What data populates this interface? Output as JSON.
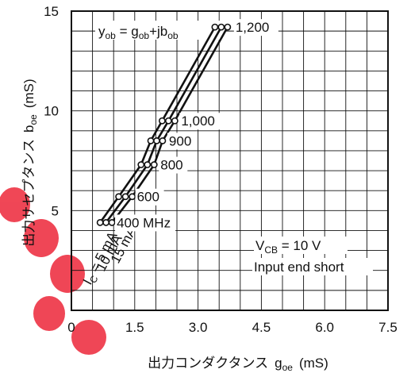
{
  "chart_data": {
    "type": "line",
    "xlabel": "出力コンダクタンス",
    "xlabel_symbol": "g",
    "xlabel_sub": "oe",
    "xlabel_unit": "(mS)",
    "ylabel": "出力サセプタンス",
    "ylabel_symbol": "b",
    "ylabel_sub": "oe",
    "ylabel_unit": "(mS)",
    "xlim": [
      0,
      7.5
    ],
    "ylim": [
      0,
      15
    ],
    "xticks": [
      "0",
      "1.5",
      "3.0",
      "4.5",
      "6.0",
      "7.5"
    ],
    "yticks": [
      "5",
      "10",
      "15"
    ],
    "grid": true,
    "frequency_labels": [
      "400 MHz",
      "600",
      "800",
      "900",
      "1,000",
      "1,200"
    ],
    "series": [
      {
        "name": "I_C = 5 mA",
        "frequency_mhz": [
          400,
          600,
          800,
          900,
          1000,
          1200
        ],
        "x": [
          0.68,
          1.12,
          1.65,
          1.88,
          2.15,
          3.4
        ],
        "y": [
          4.4,
          5.7,
          7.3,
          8.5,
          9.5,
          14.2
        ]
      },
      {
        "name": "10 mA",
        "frequency_mhz": [
          400,
          600,
          800,
          900,
          1000,
          1200
        ],
        "x": [
          0.82,
          1.28,
          1.8,
          2.02,
          2.3,
          3.55
        ],
        "y": [
          4.4,
          5.7,
          7.3,
          8.5,
          9.5,
          14.2
        ]
      },
      {
        "name": "15 mA",
        "frequency_mhz": [
          400,
          600,
          800,
          900,
          1000,
          1200
        ],
        "x": [
          0.96,
          1.44,
          1.96,
          2.16,
          2.45,
          3.7
        ],
        "y": [
          4.4,
          5.7,
          7.3,
          8.5,
          9.5,
          14.2
        ]
      }
    ],
    "annotations": {
      "formula": {
        "y": "y",
        "y_sub": "ob",
        "eq": " = ",
        "g": "g",
        "g_sub": "ob",
        "plus": "+jb",
        "b_sub": "ob"
      },
      "vcb": {
        "v": "V",
        "v_sub": "CB",
        "rest": " = 10 V"
      },
      "condition": "Input end short",
      "ic_label": {
        "i": "I",
        "i_sub": "C",
        "rest": " = 5 mA"
      },
      "ic_10": "10 mA",
      "ic_15": "15 mA"
    }
  },
  "colors": {
    "line": "#111111",
    "watermark": "#ee3344"
  }
}
